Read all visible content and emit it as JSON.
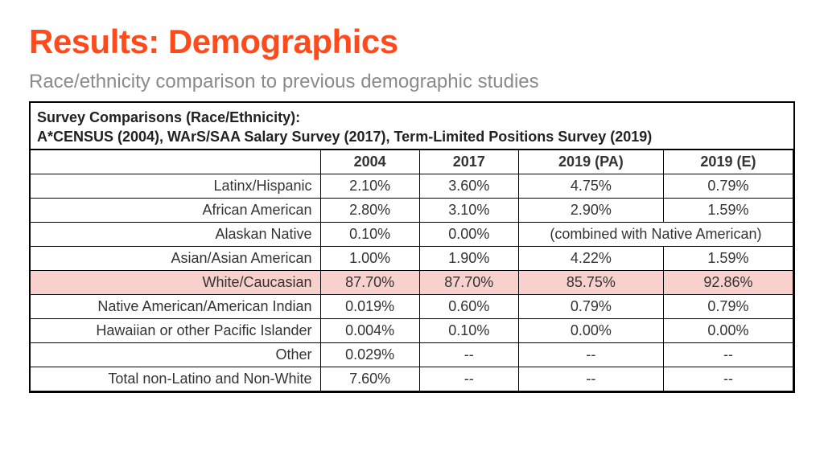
{
  "title": "Results: Demographics",
  "subtitle": "Race/ethnicity comparison to previous demographic studies",
  "table": {
    "type": "table",
    "caption_line1": "Survey Comparisons (Race/Ethnicity):",
    "caption_line2": "A*CENSUS (2004), WArS/SAA Salary Survey (2017), Term-Limited Positions Survey (2019)",
    "columns": [
      "",
      "2004",
      "2017",
      "2019 (PA)",
      "2019 (E)"
    ],
    "column_widths_pct": [
      38,
      13,
      13,
      19,
      17
    ],
    "column_align": [
      "right",
      "center",
      "center",
      "center",
      "center"
    ],
    "highlight_row_index": 4,
    "highlight_color": "#f8d0cc",
    "border_color": "#000000",
    "text_color": "#333333",
    "title_color": "#ff4a1c",
    "subtitle_color": "#8a8a8a",
    "background_color": "#ffffff",
    "title_fontsize": 42,
    "subtitle_fontsize": 24,
    "cell_fontsize": 18,
    "caption_fontsize": 18,
    "rows": [
      {
        "label": "Latinx/Hispanic",
        "cells": [
          "2.10%",
          "3.60%",
          "4.75%",
          "0.79%"
        ]
      },
      {
        "label": "African American",
        "cells": [
          "2.80%",
          "3.10%",
          "2.90%",
          "1.59%"
        ]
      },
      {
        "label": "Alaskan Native",
        "cells": [
          "0.10%",
          "0.00%"
        ],
        "merged_last": "(combined with Native American)"
      },
      {
        "label": "Asian/Asian American",
        "cells": [
          "1.00%",
          "1.90%",
          "4.22%",
          "1.59%"
        ]
      },
      {
        "label": "White/Caucasian",
        "cells": [
          "87.70%",
          "87.70%",
          "85.75%",
          "92.86%"
        ]
      },
      {
        "label": "Native American/American Indian",
        "cells": [
          "0.019%",
          "0.60%",
          "0.79%",
          "0.79%"
        ]
      },
      {
        "label": "Hawaiian or other Pacific Islander",
        "cells": [
          "0.004%",
          "0.10%",
          "0.00%",
          "0.00%"
        ]
      },
      {
        "label": "Other",
        "cells": [
          "0.029%",
          "--",
          "--",
          "--"
        ]
      },
      {
        "label": "Total non-Latino and Non-White",
        "cells": [
          "7.60%",
          "--",
          "--",
          "--"
        ]
      }
    ]
  }
}
